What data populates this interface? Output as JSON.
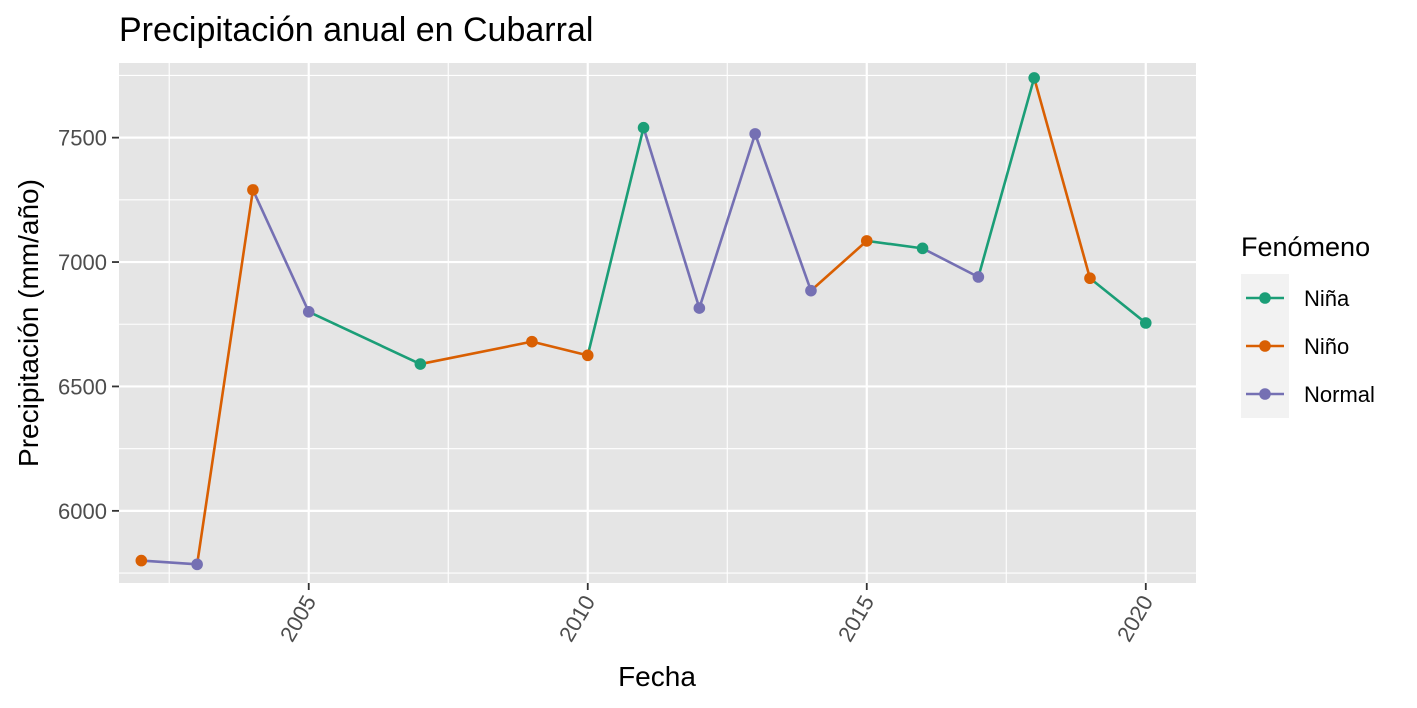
{
  "chart_data": {
    "type": "line",
    "title": "Precipitación anual en Cubarral",
    "xlabel": "Fecha",
    "ylabel": "Precipitación (mm/año)",
    "xlim": [
      2001.6,
      2020.9
    ],
    "ylim": [
      5710,
      7800
    ],
    "x_ticks": [
      "2005",
      "2010",
      "2015",
      "2020"
    ],
    "y_ticks": [
      "6000",
      "6500",
      "7000",
      "7500"
    ],
    "legend": {
      "title": "Fenómeno",
      "position": "right",
      "entries": [
        "Niña",
        "Niño",
        "Normal"
      ]
    },
    "colors": {
      "Niña": "#1b9e77",
      "Niño": "#d95f02",
      "Normal": "#7570b3",
      "panel_background": "#e5e5e5",
      "grid": "#ffffff"
    },
    "points": [
      {
        "x": 2002,
        "y": 5800,
        "fenomeno": "Niño"
      },
      {
        "x": 2003,
        "y": 5785,
        "fenomeno": "Normal"
      },
      {
        "x": 2004,
        "y": 7290,
        "fenomeno": "Niño"
      },
      {
        "x": 2005,
        "y": 6800,
        "fenomeno": "Normal"
      },
      {
        "x": 2007,
        "y": 6590,
        "fenomeno": "Niña"
      },
      {
        "x": 2009,
        "y": 6680,
        "fenomeno": "Niño"
      },
      {
        "x": 2010,
        "y": 6625,
        "fenomeno": "Niño"
      },
      {
        "x": 2011,
        "y": 7540,
        "fenomeno": "Niña"
      },
      {
        "x": 2012,
        "y": 6815,
        "fenomeno": "Normal"
      },
      {
        "x": 2013,
        "y": 7515,
        "fenomeno": "Normal"
      },
      {
        "x": 2014,
        "y": 6885,
        "fenomeno": "Normal"
      },
      {
        "x": 2015,
        "y": 7085,
        "fenomeno": "Niño"
      },
      {
        "x": 2016,
        "y": 7055,
        "fenomeno": "Niña"
      },
      {
        "x": 2017,
        "y": 6940,
        "fenomeno": "Normal"
      },
      {
        "x": 2018,
        "y": 7740,
        "fenomeno": "Niña"
      },
      {
        "x": 2019,
        "y": 6935,
        "fenomeno": "Niño"
      },
      {
        "x": 2020,
        "y": 6755,
        "fenomeno": "Niña"
      }
    ]
  }
}
